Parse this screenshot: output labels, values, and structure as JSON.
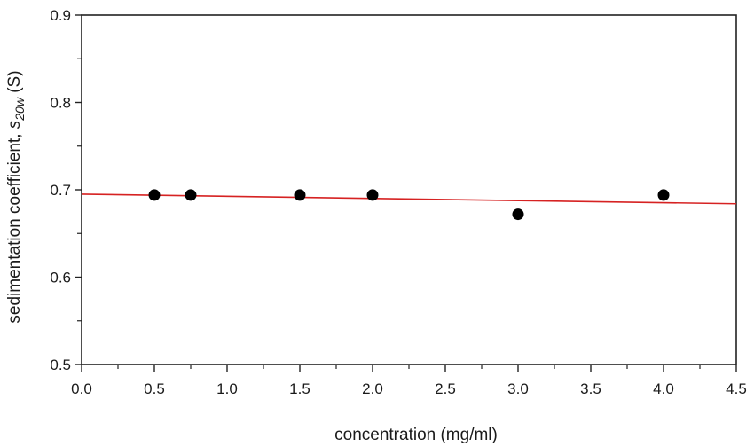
{
  "chart_data": {
    "type": "scatter",
    "title": "",
    "xlabel": "concentration  (mg/ml)",
    "ylabel": {
      "prefix": "sedimentation coefficient, ",
      "symbol": "s",
      "subscript": "20w",
      "suffix": " (S)"
    },
    "xlim": [
      0.0,
      4.5
    ],
    "ylim": [
      0.5,
      0.9
    ],
    "x_ticks": [
      "0.0",
      "0.5",
      "1.0",
      "1.5",
      "2.0",
      "2.5",
      "3.0",
      "3.5",
      "4.0",
      "4.5"
    ],
    "y_ticks": [
      "0.5",
      "0.6",
      "0.7",
      "0.8",
      "0.9"
    ],
    "grid": false,
    "series": [
      {
        "x": [
          0.5,
          0.75,
          1.5,
          2.0,
          3.0,
          4.0
        ],
        "y": [
          0.694,
          0.694,
          0.694,
          0.694,
          0.672,
          0.694
        ]
      }
    ],
    "fit_line": {
      "x": [
        0.0,
        4.5
      ],
      "y": [
        0.695,
        0.684
      ]
    },
    "colors": {
      "points": "#000000",
      "fit": "#d62222",
      "axis": "#222222"
    }
  }
}
